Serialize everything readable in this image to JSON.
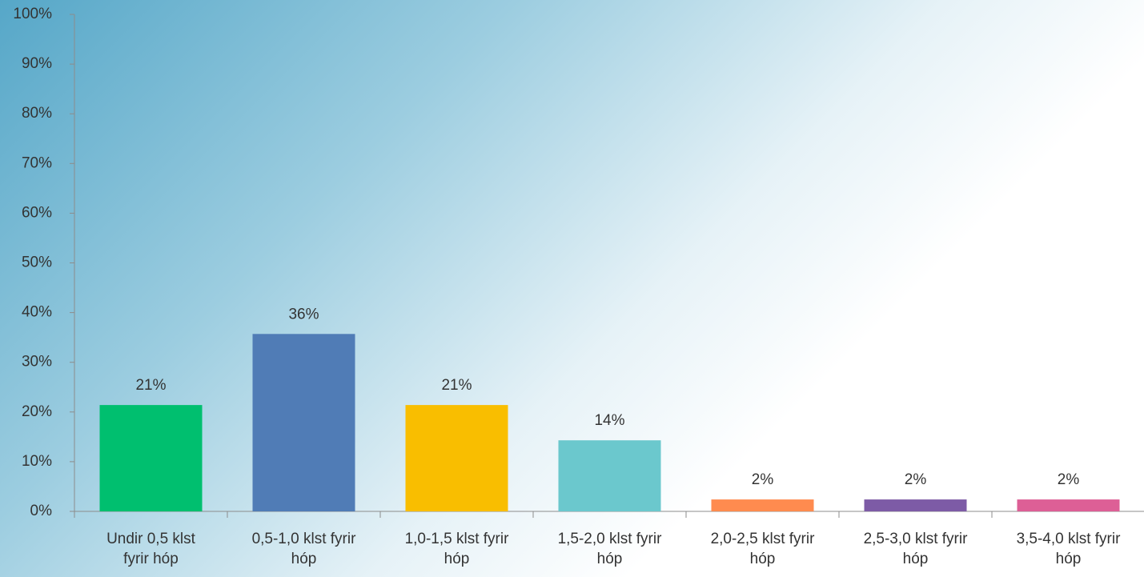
{
  "chart_data": {
    "type": "bar",
    "categories": [
      "Undir 0,5 klst\nfyrir hóp",
      "0,5-1,0 klst fyrir\nhóp",
      "1,0-1,5 klst fyrir\nhóp",
      "1,5-2,0 klst fyrir\nhóp",
      "2,0-2,5 klst fyrir\nhóp",
      "2,5-3,0 klst fyrir\nhóp",
      "3,5-4,0 klst fyrir\nhóp"
    ],
    "values": [
      21.4,
      35.7,
      21.4,
      14.3,
      2.4,
      2.4,
      2.4
    ],
    "value_labels": [
      "21%",
      "36%",
      "21%",
      "14%",
      "2%",
      "2%",
      "2%"
    ],
    "colors": [
      "#00bf6f",
      "#507cb6",
      "#f9be00",
      "#6bc8cd",
      "#ff8b4f",
      "#7d5ba6",
      "#dd5f96"
    ],
    "ylim": [
      0,
      100
    ],
    "yticks": [
      {
        "value": 0,
        "label": "0%"
      },
      {
        "value": 10,
        "label": "10%"
      },
      {
        "value": 20,
        "label": "20%"
      },
      {
        "value": 30,
        "label": "30%"
      },
      {
        "value": 40,
        "label": "40%"
      },
      {
        "value": 50,
        "label": "50%"
      },
      {
        "value": 60,
        "label": "60%"
      },
      {
        "value": 70,
        "label": "70%"
      },
      {
        "value": 80,
        "label": "80%"
      },
      {
        "value": 90,
        "label": "90%"
      },
      {
        "value": 100,
        "label": "100%"
      }
    ],
    "grid": false
  }
}
